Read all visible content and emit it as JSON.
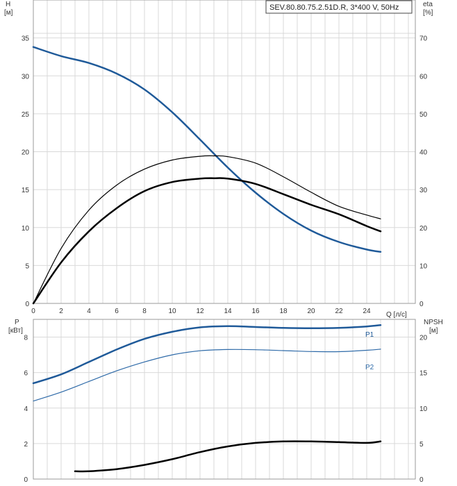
{
  "chart_data": [
    {
      "type": "line",
      "title": "SEV.80.80.75.2.51D.R, 3*400 V, 50Hz",
      "xlabel": "Q [л/с]",
      "ylabel_left": "H\n[м]",
      "ylabel_right": "eta\n[%]",
      "xlim": [
        0,
        27.5
      ],
      "ylim_left": [
        0,
        40
      ],
      "ylim_right": [
        0,
        80
      ],
      "x_ticks": [
        0,
        2,
        4,
        6,
        8,
        10,
        12,
        14,
        16,
        18,
        20,
        22,
        24
      ],
      "y_ticks_left": [
        0,
        5,
        10,
        15,
        20,
        25,
        30,
        35
      ],
      "y_ticks_right": [
        0,
        10,
        20,
        30,
        40,
        50,
        60,
        70
      ],
      "grid": true,
      "colors": {
        "head": "#1f5a99",
        "eta": "#000000",
        "grid": "#d9d9d9"
      },
      "series": [
        {
          "axis": "left",
          "color": "#1f5a99",
          "width": 2.5,
          "x": [
            0,
            2,
            4,
            6,
            8,
            10,
            12,
            14,
            16,
            18,
            20,
            22,
            24,
            25
          ],
          "values": [
            33.8,
            32.6,
            31.7,
            30.3,
            28.2,
            25.2,
            21.6,
            17.9,
            14.6,
            11.8,
            9.6,
            8.1,
            7.1,
            6.8
          ]
        },
        {
          "axis": "right",
          "color": "#000000",
          "width": 1.2,
          "x": [
            0,
            2,
            4,
            6,
            8,
            10,
            12,
            13,
            14,
            16,
            18,
            20,
            22,
            24,
            25
          ],
          "values": [
            0,
            14.5,
            24.6,
            31.2,
            35.4,
            37.8,
            38.8,
            38.9,
            38.7,
            37.0,
            33.4,
            29.3,
            25.6,
            23.3,
            22.3
          ]
        },
        {
          "axis": "right",
          "color": "#000000",
          "width": 2.5,
          "x": [
            0,
            2,
            4,
            6,
            8,
            10,
            12,
            13,
            14,
            16,
            18,
            20,
            22,
            24,
            25
          ],
          "values": [
            0,
            10.8,
            19.0,
            25.1,
            29.6,
            32.0,
            32.9,
            33.0,
            32.9,
            31.5,
            28.8,
            26.0,
            23.5,
            20.4,
            19.0
          ]
        }
      ]
    },
    {
      "type": "line",
      "xlabel": "",
      "ylabel_left": "P\n[кВт]",
      "ylabel_right": "NPSH\n[м]",
      "xlim": [
        0,
        27.5
      ],
      "ylim_left": [
        0,
        9
      ],
      "ylim_right": [
        0,
        22.5
      ],
      "y_ticks_left": [
        0,
        2,
        4,
        6,
        8
      ],
      "y_ticks_right": [
        0,
        5,
        10,
        15,
        20
      ],
      "grid": true,
      "colors": {
        "p": "#1f5a99",
        "npsh": "#000000"
      },
      "series": [
        {
          "name": "P1",
          "axis": "left",
          "color": "#1f5a99",
          "width": 2.5,
          "x": [
            0,
            2,
            4,
            6,
            8,
            10,
            12,
            14,
            16,
            18,
            20,
            22,
            24,
            25
          ],
          "values": [
            5.4,
            5.9,
            6.6,
            7.3,
            7.9,
            8.3,
            8.55,
            8.62,
            8.57,
            8.52,
            8.5,
            8.52,
            8.6,
            8.68
          ]
        },
        {
          "name": "P2",
          "axis": "left",
          "color": "#2e6aa8",
          "width": 1.2,
          "x": [
            0,
            2,
            4,
            6,
            8,
            10,
            12,
            14,
            16,
            18,
            20,
            22,
            24,
            25
          ],
          "values": [
            4.4,
            4.9,
            5.5,
            6.1,
            6.6,
            7.0,
            7.23,
            7.3,
            7.29,
            7.24,
            7.19,
            7.18,
            7.26,
            7.32
          ]
        },
        {
          "axis": "right",
          "color": "#000000",
          "width": 2.5,
          "x": [
            3,
            4,
            6,
            8,
            10,
            12,
            14,
            16,
            18,
            20,
            22,
            24,
            25
          ],
          "values": [
            1.1,
            1.1,
            1.4,
            2.0,
            2.8,
            3.8,
            4.6,
            5.1,
            5.3,
            5.3,
            5.2,
            5.1,
            5.3
          ]
        }
      ]
    }
  ]
}
